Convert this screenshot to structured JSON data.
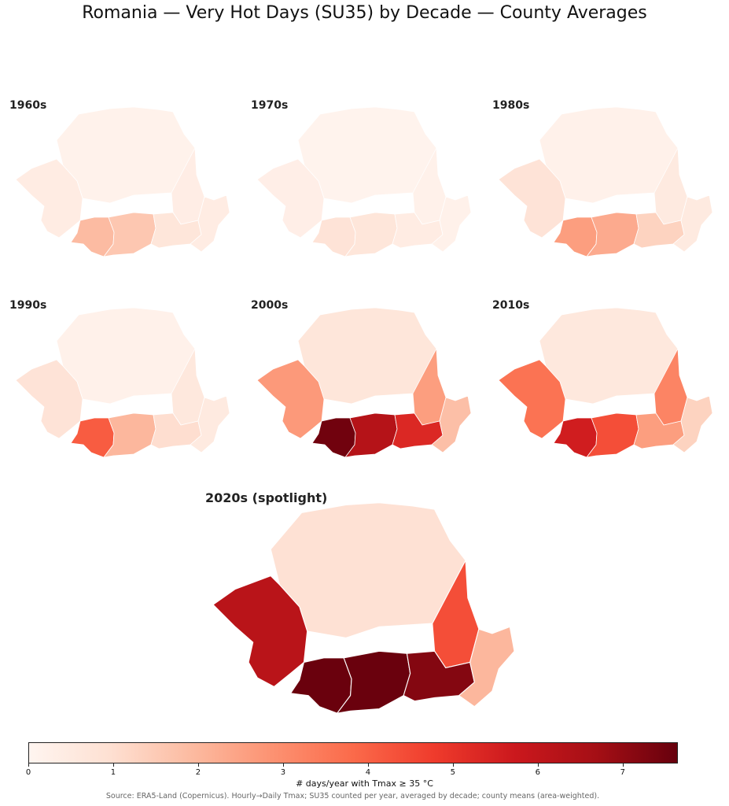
{
  "title": "Romania — Very Hot Days (SU35) by Decade — County Averages",
  "colors": {
    "scale_stops": [
      "#fff5f0",
      "#fee0d2",
      "#fcbba1",
      "#fc9272",
      "#fb6a4a",
      "#ef3b2c",
      "#cb181d",
      "#a50f15",
      "#67000d"
    ],
    "border": "#ffffff"
  },
  "panels": [
    {
      "label": "1960s",
      "levels": {
        "west": 0.4,
        "north": 0.15,
        "east": 0.35,
        "southwest": 1.9,
        "south": 1.6,
        "southeast": 0.7,
        "dobrogea": 0.4
      }
    },
    {
      "label": "1970s",
      "levels": {
        "west": 0.3,
        "north": 0.1,
        "east": 0.2,
        "southwest": 0.8,
        "south": 0.7,
        "southeast": 0.4,
        "dobrogea": 0.2
      }
    },
    {
      "label": "1980s",
      "levels": {
        "west": 0.8,
        "north": 0.2,
        "east": 0.5,
        "southwest": 2.6,
        "south": 2.3,
        "southeast": 1.3,
        "dobrogea": 0.5
      }
    },
    {
      "label": "1990s",
      "levels": {
        "west": 0.8,
        "north": 0.2,
        "east": 0.6,
        "southwest": 4.1,
        "south": 2.0,
        "southeast": 1.0,
        "dobrogea": 0.5
      }
    },
    {
      "label": "2000s",
      "levels": {
        "west": 2.7,
        "north": 0.7,
        "east": 2.6,
        "southwest": 7.5,
        "south": 6.3,
        "southeast": 5.3,
        "dobrogea": 1.8
      }
    },
    {
      "label": "2010s",
      "levels": {
        "west": 3.6,
        "north": 0.6,
        "east": 3.2,
        "southwest": 5.6,
        "south": 4.4,
        "southeast": 2.6,
        "dobrogea": 1.3
      }
    },
    {
      "label": "2020s (spotlight)",
      "levels": {
        "west": 6.2,
        "north": 0.9,
        "east": 4.4,
        "southwest": 7.6,
        "south": 7.6,
        "southeast": 7.2,
        "dobrogea": 2.0
      }
    }
  ],
  "colorbar": {
    "min": 0,
    "max": 7.65,
    "ticks": [
      "0",
      "1",
      "2",
      "3",
      "4",
      "5",
      "6",
      "7"
    ],
    "label": "# days/year with Tmax ≥ 35 °C"
  },
  "source": "Source: ERA5-Land (Copernicus). Hourly→Daily Tmax; SU35 counted per year, averaged by decade; county means (area-weighted)."
}
